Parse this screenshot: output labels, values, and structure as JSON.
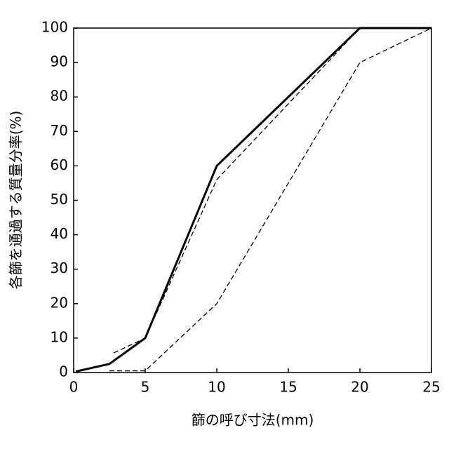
{
  "chart_data": {
    "type": "line",
    "x_label": "篩の呼び寸法(mm)",
    "y_label": "各篩を通過する質量分率(%)",
    "xlim": [
      0,
      25
    ],
    "xticks": [
      0,
      5,
      10,
      15,
      20,
      25
    ],
    "ylim": [
      0,
      100
    ],
    "yticks": [
      0,
      10,
      20,
      30,
      40,
      50,
      60,
      70,
      80,
      90,
      100
    ],
    "series": [
      {
        "color": "#000000",
        "style": "solid",
        "x": [
          0.15,
          2.5,
          5,
          10,
          20,
          25
        ],
        "values": [
          0.3,
          2.5,
          10,
          60,
          100,
          100
        ]
      },
      {
        "color": "#000000",
        "style": "dashed",
        "x": [
          2.8,
          5,
          10,
          20,
          25
        ],
        "values": [
          5.7,
          10,
          56,
          100,
          100
        ]
      },
      {
        "color": "#000000",
        "style": "dashed",
        "x": [
          2.5,
          5,
          10,
          20,
          25
        ],
        "values": [
          0.5,
          0.5,
          20,
          90,
          100
        ]
      }
    ]
  }
}
